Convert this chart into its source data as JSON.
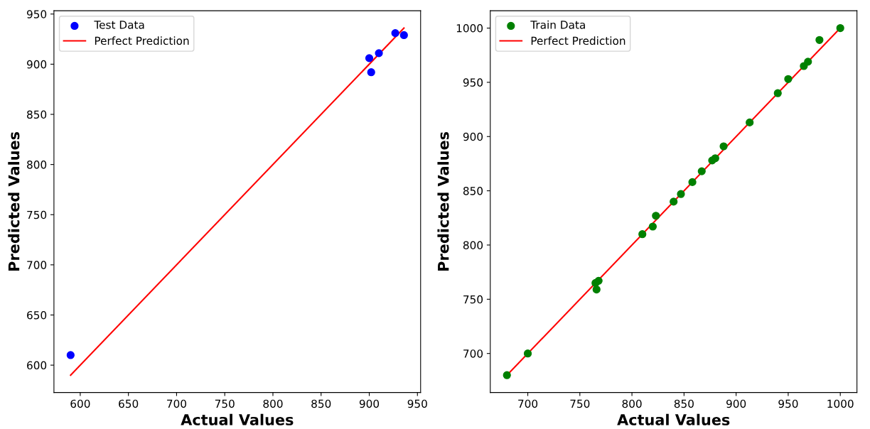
{
  "chart_data": [
    {
      "type": "scatter",
      "xlabel": "Actual Values",
      "ylabel": "Predicted Values",
      "xlim": [
        572.7,
        953.3
      ],
      "ylim": [
        572.7,
        953.3
      ],
      "xticks": [
        600,
        650,
        700,
        750,
        800,
        850,
        900,
        950
      ],
      "yticks": [
        600,
        650,
        700,
        750,
        800,
        850,
        900,
        950
      ],
      "legend": "top left",
      "grid": false,
      "series": [
        {
          "name": "Test Data",
          "marker": "circle",
          "color": "#0000ff",
          "x": [
            590,
            900,
            902,
            910,
            927,
            936
          ],
          "values": [
            610,
            906,
            892,
            911,
            931,
            929
          ]
        },
        {
          "name": "Perfect Prediction",
          "type": "line",
          "color": "#ff0000",
          "x": [
            590,
            936
          ],
          "values": [
            590,
            936
          ]
        }
      ]
    },
    {
      "type": "scatter",
      "xlabel": "Actual Values",
      "ylabel": "Predicted Values",
      "xlim": [
        664,
        1016
      ],
      "ylim": [
        664,
        1016
      ],
      "xticks": [
        700,
        750,
        800,
        850,
        900,
        950,
        1000
      ],
      "yticks": [
        700,
        750,
        800,
        850,
        900,
        950,
        1000
      ],
      "legend": "top left",
      "grid": false,
      "series": [
        {
          "name": "Train Data",
          "marker": "circle",
          "color": "#008000",
          "x": [
            680,
            700,
            765,
            766,
            768,
            810,
            820,
            823,
            840,
            847,
            858,
            867,
            877,
            880,
            888,
            913,
            940,
            950,
            965,
            969,
            980,
            1000
          ],
          "values": [
            680,
            700,
            765,
            759,
            767,
            810,
            817,
            827,
            840,
            847,
            858,
            868,
            878,
            880,
            891,
            913,
            940,
            953,
            965,
            969,
            989,
            1000
          ]
        },
        {
          "name": "Perfect Prediction",
          "type": "line",
          "color": "#ff0000",
          "x": [
            680,
            1000
          ],
          "values": [
            680,
            1000
          ]
        }
      ]
    }
  ]
}
